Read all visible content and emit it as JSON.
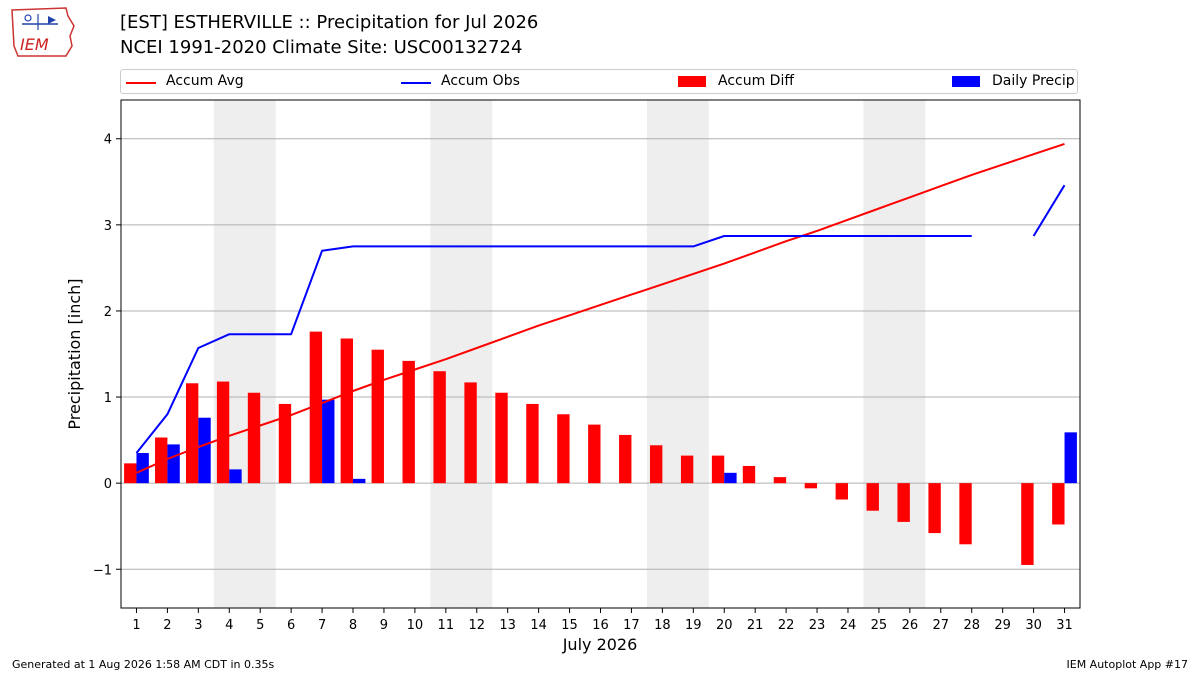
{
  "header": {
    "title_line1": "[EST] ESTHERVILLE :: Precipitation for Jul 2026",
    "title_line2": "NCEI 1991-2020 Climate Site: USC00132724",
    "logo_text": "IEM"
  },
  "footer": {
    "generated": "Generated at 1 Aug 2026 1:58 AM CDT in 0.35s",
    "app": "IEM Autoplot App #17"
  },
  "legend": {
    "accum_avg": "Accum Avg",
    "accum_obs": "Accum Obs",
    "accum_diff": "Accum Diff",
    "daily_precip": "Daily Precip"
  },
  "colors": {
    "accum_avg": "#ff0000",
    "accum_obs": "#0000ff",
    "accum_diff": "#ff0000",
    "daily_precip": "#0000ff",
    "weekend_shade": "#eeeeee",
    "grid": "#b0b0b0"
  },
  "chart_data": {
    "type": "bar",
    "xlabel": "July 2026",
    "ylabel": "Precipitation [inch]",
    "xlim": [
      0.5,
      31.5
    ],
    "ylim": [
      -1.45,
      4.45
    ],
    "yticks": [
      -1,
      0,
      1,
      2,
      3,
      4
    ],
    "grid": "horizontal",
    "legend_position": "top",
    "weekend_days": [
      4,
      5,
      11,
      12,
      18,
      19,
      25,
      26
    ],
    "days": [
      1,
      2,
      3,
      4,
      5,
      6,
      7,
      8,
      9,
      10,
      11,
      12,
      13,
      14,
      15,
      16,
      17,
      18,
      19,
      20,
      21,
      22,
      23,
      24,
      25,
      26,
      27,
      28,
      29,
      30,
      31
    ],
    "series": [
      {
        "name": "Accum Avg",
        "kind": "line",
        "values": [
          0.12,
          0.28,
          0.42,
          0.55,
          0.67,
          0.79,
          0.93,
          1.07,
          1.2,
          1.32,
          1.44,
          1.57,
          1.7,
          1.83,
          1.95,
          2.07,
          2.19,
          2.31,
          2.43,
          2.55,
          2.68,
          2.81,
          2.93,
          3.06,
          3.19,
          3.32,
          3.45,
          3.58,
          3.7,
          3.82,
          3.94
        ]
      },
      {
        "name": "Accum Obs",
        "kind": "line",
        "values": [
          0.35,
          0.8,
          1.57,
          1.73,
          1.73,
          1.73,
          2.7,
          2.75,
          2.75,
          2.75,
          2.75,
          2.75,
          2.75,
          2.75,
          2.75,
          2.75,
          2.75,
          2.75,
          2.75,
          2.87,
          2.87,
          2.87,
          2.87,
          2.87,
          2.87,
          2.87,
          2.87,
          2.87,
          null,
          2.87,
          3.46
        ]
      },
      {
        "name": "Accum Diff",
        "kind": "bar",
        "values": [
          0.23,
          0.53,
          1.16,
          1.18,
          1.05,
          0.92,
          1.76,
          1.68,
          1.55,
          1.42,
          1.3,
          1.17,
          1.05,
          0.92,
          0.8,
          0.68,
          0.56,
          0.44,
          0.32,
          0.32,
          0.2,
          0.07,
          -0.06,
          -0.19,
          -0.32,
          -0.45,
          -0.58,
          -0.71,
          null,
          -0.95,
          -0.48
        ]
      },
      {
        "name": "Daily Precip",
        "kind": "bar",
        "values": [
          0.35,
          0.45,
          0.76,
          0.16,
          0,
          0,
          0.97,
          0.05,
          0,
          0,
          0,
          0,
          0,
          0,
          0,
          0,
          0,
          0,
          0,
          0.12,
          0,
          0,
          0,
          0,
          0,
          0,
          0,
          0,
          null,
          0,
          0.59
        ]
      }
    ]
  }
}
